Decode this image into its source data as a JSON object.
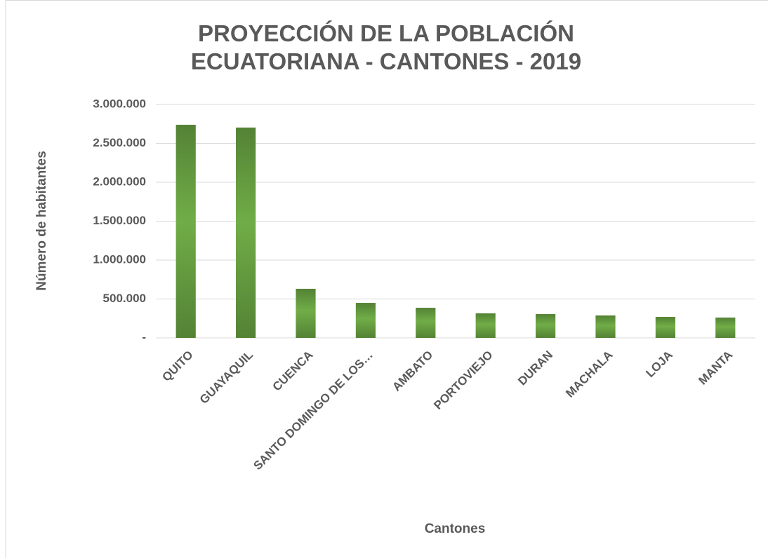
{
  "chart_data": {
    "type": "bar",
    "title": "PROYECCIÓN DE LA POBLACIÓN ECUATORIANA - CANTONES - 2019",
    "x_label": "Cantones",
    "y_label": "Número de habitantes",
    "categories": [
      "QUITO",
      "GUAYAQUIL",
      "CUENCA",
      "SANTO DOMINGO DE LOS…",
      "AMBATO",
      "PORTOVIEJO",
      "DURAN",
      "MACHALA",
      "LOJA",
      "MANTA"
    ],
    "values": [
      2739000,
      2703000,
      631000,
      450000,
      387000,
      315000,
      306000,
      288000,
      270000,
      261000
    ],
    "color": "#548235",
    "ylim": [
      0,
      3000000
    ],
    "yticks": [
      {
        "value": 0,
        "label": "-"
      },
      {
        "value": 500000,
        "label": "500.000"
      },
      {
        "value": 1000000,
        "label": "1.000.000"
      },
      {
        "value": 1500000,
        "label": "1.500.000"
      },
      {
        "value": 2000000,
        "label": "2.000.000"
      },
      {
        "value": 2500000,
        "label": "2.500.000"
      },
      {
        "value": 3000000,
        "label": "3.000.000"
      }
    ],
    "grid": true
  }
}
